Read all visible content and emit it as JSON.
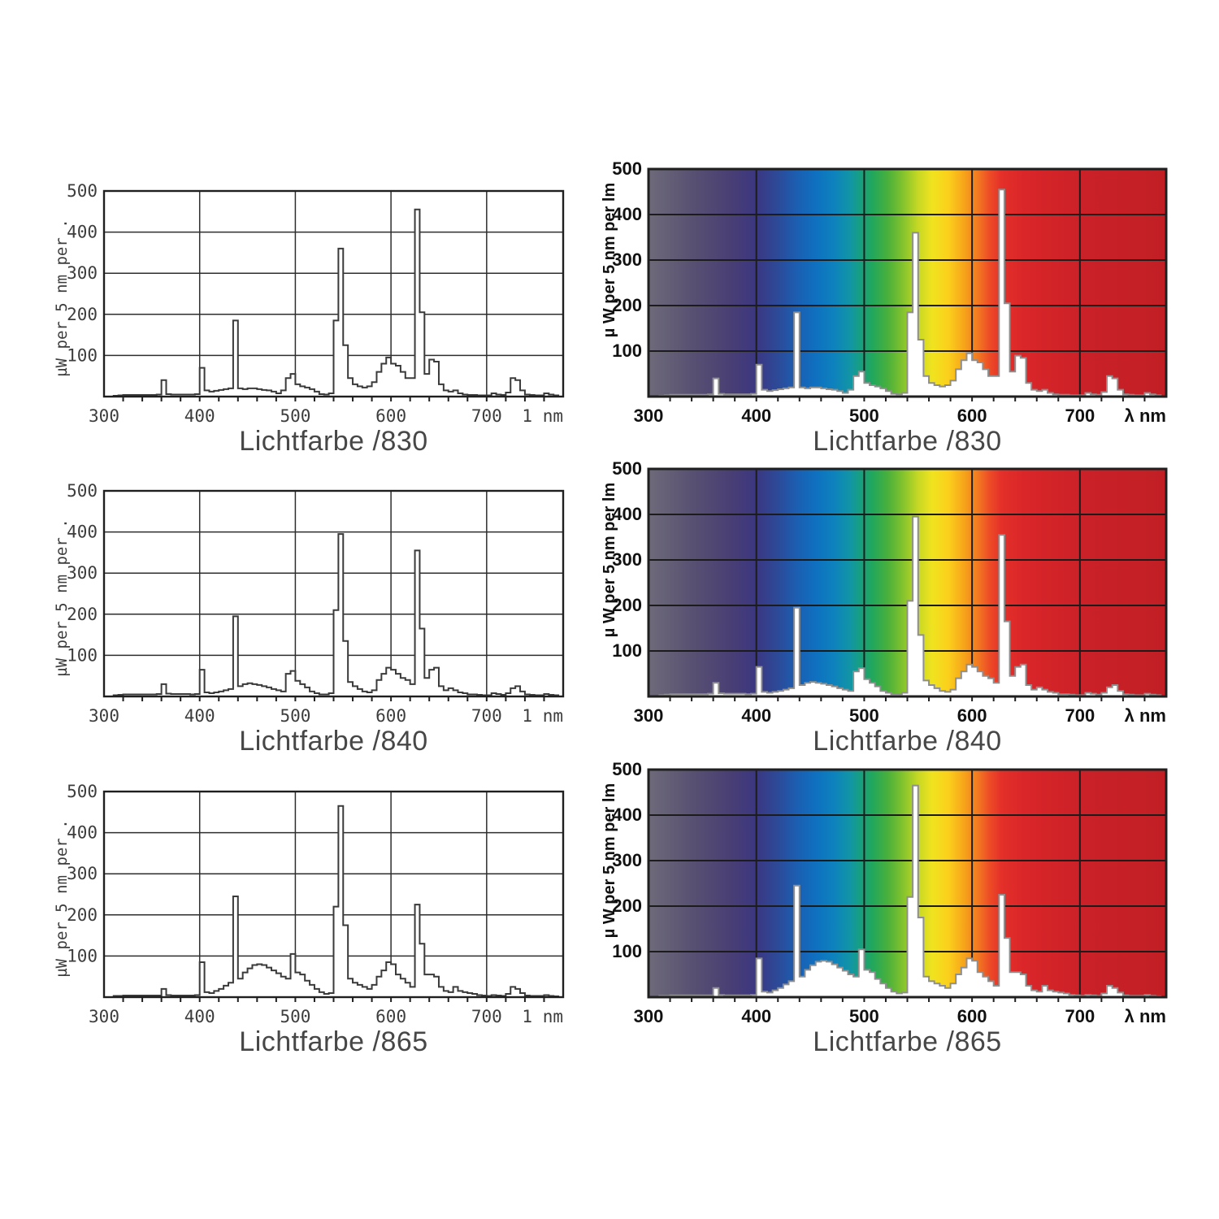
{
  "page": {
    "background": "#ffffff"
  },
  "styles": {
    "bw_plot_bg": "#ffffff",
    "grid_color_bw": "#2e2e2e",
    "grid_color_color": "#1c1c1c",
    "border_color": "#1f1f1f",
    "curve_fill": "#ffffff",
    "curve_stroke_bw": "#3a3a3a",
    "curve_stroke_color": "#8f8f8f",
    "text_bw": "#3d3d3d",
    "text_color": "#111111",
    "title_color": "#474747"
  },
  "spectrum_gradient": {
    "stops": [
      [
        300,
        "#6e6a7a"
      ],
      [
        340,
        "#585172"
      ],
      [
        375,
        "#4a3f74"
      ],
      [
        400,
        "#3b3781"
      ],
      [
        420,
        "#2c4a99"
      ],
      [
        438,
        "#1b5fb2"
      ],
      [
        455,
        "#0f70c0"
      ],
      [
        472,
        "#0d82bd"
      ],
      [
        487,
        "#1295a5"
      ],
      [
        497,
        "#17a07e"
      ],
      [
        508,
        "#22a75b"
      ],
      [
        522,
        "#4ab03b"
      ],
      [
        536,
        "#83c32d"
      ],
      [
        550,
        "#c6d824"
      ],
      [
        563,
        "#f0e31f"
      ],
      [
        578,
        "#fbd01c"
      ],
      [
        593,
        "#f6a31a"
      ],
      [
        606,
        "#f27722"
      ],
      [
        616,
        "#ed4d26"
      ],
      [
        627,
        "#e43029"
      ],
      [
        648,
        "#da2629"
      ],
      [
        700,
        "#cb2128"
      ],
      [
        780,
        "#c11f25"
      ]
    ]
  },
  "series": {
    "s830": {
      "start": 310,
      "step": 5,
      "values": [
        2,
        3,
        4,
        4,
        4,
        4,
        4,
        4,
        4,
        5,
        40,
        6,
        5,
        5,
        5,
        5,
        5,
        6,
        70,
        15,
        12,
        14,
        16,
        18,
        20,
        185,
        20,
        18,
        20,
        20,
        18,
        16,
        15,
        12,
        8,
        15,
        45,
        55,
        30,
        25,
        22,
        18,
        12,
        6,
        5,
        8,
        185,
        360,
        125,
        45,
        30,
        25,
        22,
        25,
        35,
        60,
        80,
        95,
        80,
        75,
        60,
        45,
        45,
        455,
        205,
        55,
        90,
        85,
        30,
        15,
        12,
        15,
        8,
        5,
        4,
        4,
        3,
        3,
        3,
        8,
        5,
        4,
        10,
        45,
        40,
        15,
        5,
        4,
        3,
        3,
        8,
        5,
        3
      ]
    },
    "s840": {
      "start": 310,
      "step": 5,
      "values": [
        3,
        4,
        5,
        5,
        5,
        5,
        5,
        5,
        5,
        6,
        30,
        7,
        6,
        6,
        6,
        6,
        5,
        6,
        65,
        10,
        8,
        10,
        12,
        15,
        18,
        195,
        25,
        30,
        32,
        30,
        28,
        25,
        22,
        18,
        15,
        12,
        55,
        62,
        38,
        30,
        22,
        12,
        8,
        5,
        5,
        8,
        210,
        395,
        135,
        35,
        25,
        18,
        12,
        10,
        15,
        40,
        55,
        70,
        65,
        55,
        45,
        40,
        30,
        355,
        165,
        45,
        65,
        70,
        25,
        15,
        20,
        15,
        10,
        8,
        5,
        5,
        4,
        3,
        3,
        8,
        6,
        4,
        8,
        20,
        25,
        12,
        5,
        4,
        3,
        3,
        6,
        4,
        3
      ]
    },
    "s865": {
      "start": 310,
      "step": 5,
      "values": [
        3,
        3,
        4,
        4,
        4,
        4,
        4,
        4,
        4,
        4,
        20,
        5,
        4,
        4,
        4,
        4,
        4,
        5,
        85,
        12,
        10,
        15,
        20,
        28,
        35,
        245,
        45,
        60,
        70,
        78,
        80,
        78,
        72,
        65,
        58,
        50,
        45,
        105,
        60,
        55,
        40,
        30,
        20,
        12,
        8,
        10,
        220,
        465,
        175,
        45,
        35,
        30,
        25,
        20,
        30,
        50,
        65,
        85,
        80,
        55,
        45,
        35,
        25,
        225,
        130,
        55,
        55,
        50,
        25,
        15,
        12,
        25,
        15,
        12,
        10,
        8,
        5,
        4,
        3,
        5,
        4,
        3,
        8,
        25,
        20,
        10,
        4,
        3,
        3,
        3,
        5,
        3,
        2
      ]
    }
  },
  "chart_data": [
    {
      "id": "bw-830",
      "type": "area",
      "variant": "bw",
      "title": "Lichtfarbe /830",
      "ylabel": "µW per 5 nm per .",
      "xlabel_end": "1 nm",
      "x_ticks": [
        300,
        400,
        500,
        600,
        700
      ],
      "y_ticks": [
        100,
        200,
        300,
        400,
        500
      ],
      "xlim": [
        300,
        780
      ],
      "ylim": [
        0,
        500
      ],
      "grid": true,
      "series": "s830"
    },
    {
      "id": "col-830",
      "type": "area",
      "variant": "color",
      "title": "Lichtfarbe /830",
      "ylabel": "µ W per 5 nm per lm",
      "xlabel_end": "λ nm",
      "x_ticks": [
        300,
        400,
        500,
        600,
        700
      ],
      "y_ticks": [
        100,
        200,
        300,
        400,
        500
      ],
      "xlim": [
        300,
        780
      ],
      "ylim": [
        0,
        500
      ],
      "grid": true,
      "series": "s830"
    },
    {
      "id": "bw-840",
      "type": "area",
      "variant": "bw",
      "title": "Lichtfarbe /840",
      "ylabel": "µW per 5 nm per .",
      "xlabel_end": "1 nm",
      "x_ticks": [
        300,
        400,
        500,
        600,
        700
      ],
      "y_ticks": [
        100,
        200,
        300,
        400,
        500
      ],
      "xlim": [
        300,
        780
      ],
      "ylim": [
        0,
        500
      ],
      "grid": true,
      "series": "s840"
    },
    {
      "id": "col-840",
      "type": "area",
      "variant": "color",
      "title": "Lichtfarbe /840",
      "ylabel": "µ W per 5 nm per lm",
      "xlabel_end": "λ nm",
      "x_ticks": [
        300,
        400,
        500,
        600,
        700
      ],
      "y_ticks": [
        100,
        200,
        300,
        400,
        500
      ],
      "xlim": [
        300,
        780
      ],
      "ylim": [
        0,
        500
      ],
      "grid": true,
      "series": "s840"
    },
    {
      "id": "bw-865",
      "type": "area",
      "variant": "bw",
      "title": "Lichtfarbe /865",
      "ylabel": "µW per 5 nm per .",
      "xlabel_end": "1 nm",
      "x_ticks": [
        300,
        400,
        500,
        600,
        700
      ],
      "y_ticks": [
        100,
        200,
        300,
        400,
        500
      ],
      "xlim": [
        300,
        780
      ],
      "ylim": [
        0,
        500
      ],
      "grid": true,
      "series": "s865"
    },
    {
      "id": "col-865",
      "type": "area",
      "variant": "color",
      "title": "Lichtfarbe /865",
      "ylabel": "µ W per 5 nm per lm",
      "xlabel_end": "λ nm",
      "x_ticks": [
        300,
        400,
        500,
        600,
        700
      ],
      "y_ticks": [
        100,
        200,
        300,
        400,
        500
      ],
      "xlim": [
        300,
        780
      ],
      "ylim": [
        0,
        500
      ],
      "grid": true,
      "series": "s865"
    }
  ]
}
